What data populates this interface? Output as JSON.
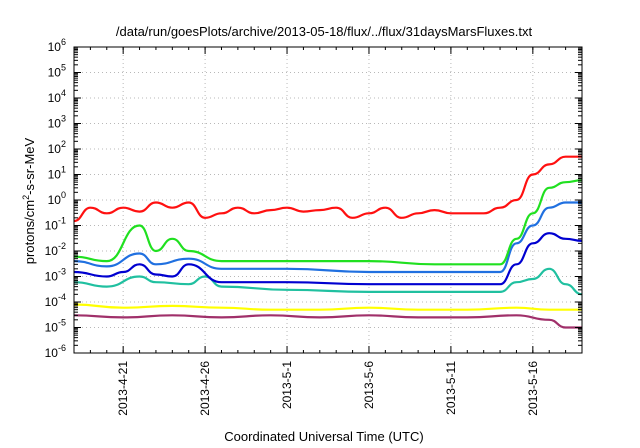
{
  "chart_data": {
    "type": "line",
    "title": "/data/run/goesPlots/archive/2013-05-18/flux/../flux/31daysMarsFluxes.txt",
    "xlabel": "Coordinated Universal Time (UTC)",
    "ylabel_parts": [
      "protons/cm",
      "2",
      "-s-sr-MeV"
    ],
    "y_scale": "log",
    "ylim": [
      1e-06,
      1000000.0
    ],
    "xlim": [
      "2013-04-18",
      "2013-05-19"
    ],
    "grid": true,
    "x_ticks": [
      "2013-4-21",
      "2013-4-26",
      "2013-5-1",
      "2013-5-6",
      "2013-5-11",
      "2013-5-16"
    ],
    "y_ticks": [
      {
        "value": 1e-06,
        "base": "10",
        "exp": "-6"
      },
      {
        "value": 1e-05,
        "base": "10",
        "exp": "-5"
      },
      {
        "value": 0.0001,
        "base": "10",
        "exp": "-4"
      },
      {
        "value": 0.001,
        "base": "10",
        "exp": "-3"
      },
      {
        "value": 0.01,
        "base": "10",
        "exp": "-2"
      },
      {
        "value": 0.1,
        "base": "10",
        "exp": "-1"
      },
      {
        "value": 1,
        "base": "10",
        "exp": "0"
      },
      {
        "value": 10,
        "base": "10",
        "exp": "1"
      },
      {
        "value": 100,
        "base": "10",
        "exp": "2"
      },
      {
        "value": 1000,
        "base": "10",
        "exp": "3"
      },
      {
        "value": 10000,
        "base": "10",
        "exp": "4"
      },
      {
        "value": 100000,
        "base": "10",
        "exp": "5"
      },
      {
        "value": 1000000,
        "base": "10",
        "exp": "6"
      }
    ],
    "series": [
      {
        "color": "#a0306a",
        "points": [
          [
            "2013-04-18",
            3e-05
          ],
          [
            "2013-04-21",
            2.5e-05
          ],
          [
            "2013-04-24",
            3e-05
          ],
          [
            "2013-04-27",
            2.5e-05
          ],
          [
            "2013-04-30",
            3e-05
          ],
          [
            "2013-05-03",
            2.5e-05
          ],
          [
            "2013-05-06",
            3e-05
          ],
          [
            "2013-05-09",
            2.5e-05
          ],
          [
            "2013-05-12",
            2.5e-05
          ],
          [
            "2013-05-15",
            3e-05
          ],
          [
            "2013-05-17",
            2e-05
          ],
          [
            "2013-05-18",
            1e-05
          ],
          [
            "2013-05-19",
            1e-05
          ]
        ]
      },
      {
        "color": "#ffff00",
        "points": [
          [
            "2013-04-18",
            8e-05
          ],
          [
            "2013-04-21",
            6e-05
          ],
          [
            "2013-04-24",
            7e-05
          ],
          [
            "2013-04-27",
            6e-05
          ],
          [
            "2013-04-30",
            5e-05
          ],
          [
            "2013-05-03",
            5e-05
          ],
          [
            "2013-05-06",
            6e-05
          ],
          [
            "2013-05-09",
            5e-05
          ],
          [
            "2013-05-12",
            5e-05
          ],
          [
            "2013-05-15",
            6e-05
          ],
          [
            "2013-05-17",
            5e-05
          ],
          [
            "2013-05-19",
            5e-05
          ]
        ]
      },
      {
        "color": "#20c0a0",
        "points": [
          [
            "2013-04-18",
            0.0006
          ],
          [
            "2013-04-20",
            0.0004
          ],
          [
            "2013-04-22",
            0.001
          ],
          [
            "2013-04-23",
            0.0006
          ],
          [
            "2013-04-25",
            0.0005
          ],
          [
            "2013-04-26",
            0.001
          ],
          [
            "2013-04-27",
            0.0004
          ],
          [
            "2013-05-01",
            0.0003
          ],
          [
            "2013-05-06",
            0.00025
          ],
          [
            "2013-05-10",
            0.00025
          ],
          [
            "2013-05-14",
            0.00025
          ],
          [
            "2013-05-15",
            0.0006
          ],
          [
            "2013-05-16",
            0.0008
          ],
          [
            "2013-05-17",
            0.002
          ],
          [
            "2013-05-18",
            0.0005
          ],
          [
            "2013-05-19",
            0.0002
          ]
        ]
      },
      {
        "color": "#0000d0",
        "points": [
          [
            "2013-04-18",
            0.0015
          ],
          [
            "2013-04-20",
            0.001
          ],
          [
            "2013-04-21",
            0.0015
          ],
          [
            "2013-04-22",
            0.003
          ],
          [
            "2013-04-23",
            0.0012
          ],
          [
            "2013-04-24",
            0.001
          ],
          [
            "2013-04-25",
            0.003
          ],
          [
            "2013-04-27",
            0.0006
          ],
          [
            "2013-05-01",
            0.0006
          ],
          [
            "2013-05-06",
            0.0005
          ],
          [
            "2013-05-10",
            0.0005
          ],
          [
            "2013-05-14",
            0.0005
          ],
          [
            "2013-05-15",
            0.003
          ],
          [
            "2013-05-16",
            0.02
          ],
          [
            "2013-05-17",
            0.05
          ],
          [
            "2013-05-18",
            0.03
          ],
          [
            "2013-05-19",
            0.025
          ]
        ]
      },
      {
        "color": "#2070e0",
        "points": [
          [
            "2013-04-18",
            0.004
          ],
          [
            "2013-04-20",
            0.0025
          ],
          [
            "2013-04-22",
            0.008
          ],
          [
            "2013-04-23",
            0.003
          ],
          [
            "2013-04-25",
            0.005
          ],
          [
            "2013-04-27",
            0.002
          ],
          [
            "2013-05-01",
            0.002
          ],
          [
            "2013-05-06",
            0.0015
          ],
          [
            "2013-05-10",
            0.0015
          ],
          [
            "2013-05-14",
            0.0015
          ],
          [
            "2013-05-15",
            0.02
          ],
          [
            "2013-05-16",
            0.1
          ],
          [
            "2013-05-17",
            0.5
          ],
          [
            "2013-05-18",
            0.8
          ],
          [
            "2013-05-19",
            0.8
          ]
        ]
      },
      {
        "color": "#20e020",
        "points": [
          [
            "2013-04-18",
            0.006
          ],
          [
            "2013-04-20",
            0.004
          ],
          [
            "2013-04-22",
            0.1
          ],
          [
            "2013-04-23",
            0.01
          ],
          [
            "2013-04-24",
            0.03
          ],
          [
            "2013-04-25",
            0.01
          ],
          [
            "2013-04-27",
            0.004
          ],
          [
            "2013-05-01",
            0.004
          ],
          [
            "2013-05-06",
            0.004
          ],
          [
            "2013-05-10",
            0.003
          ],
          [
            "2013-05-14",
            0.003
          ],
          [
            "2013-05-15",
            0.03
          ],
          [
            "2013-05-16",
            0.3
          ],
          [
            "2013-05-17",
            3
          ],
          [
            "2013-05-18",
            5
          ],
          [
            "2013-05-19",
            6
          ]
        ]
      },
      {
        "color": "#ff1010",
        "points": [
          [
            "2013-04-18",
            0.15
          ],
          [
            "2013-04-19",
            0.5
          ],
          [
            "2013-04-20",
            0.3
          ],
          [
            "2013-04-21",
            0.5
          ],
          [
            "2013-04-22",
            0.35
          ],
          [
            "2013-04-23",
            0.8
          ],
          [
            "2013-04-24",
            0.5
          ],
          [
            "2013-04-25",
            0.8
          ],
          [
            "2013-04-26",
            0.2
          ],
          [
            "2013-04-27",
            0.3
          ],
          [
            "2013-04-28",
            0.5
          ],
          [
            "2013-04-29",
            0.3
          ],
          [
            "2013-04-30",
            0.4
          ],
          [
            "2013-05-01",
            0.5
          ],
          [
            "2013-05-02",
            0.35
          ],
          [
            "2013-05-03",
            0.4
          ],
          [
            "2013-05-04",
            0.5
          ],
          [
            "2013-05-05",
            0.2
          ],
          [
            "2013-05-06",
            0.3
          ],
          [
            "2013-05-07",
            0.5
          ],
          [
            "2013-05-08",
            0.2
          ],
          [
            "2013-05-09",
            0.3
          ],
          [
            "2013-05-10",
            0.4
          ],
          [
            "2013-05-11",
            0.3
          ],
          [
            "2013-05-12",
            0.3
          ],
          [
            "2013-05-13",
            0.3
          ],
          [
            "2013-05-14",
            0.5
          ],
          [
            "2013-05-15",
            1
          ],
          [
            "2013-05-16",
            10
          ],
          [
            "2013-05-17",
            25
          ],
          [
            "2013-05-18",
            50
          ],
          [
            "2013-05-19",
            50
          ]
        ]
      }
    ]
  }
}
